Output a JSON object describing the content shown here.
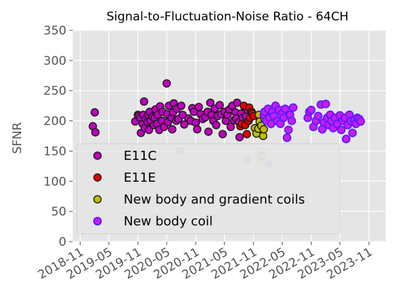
{
  "chart_data": {
    "type": "scatter",
    "title": "Signal-to-Fluctuation-Noise Ratio - 64CH",
    "xlabel": "",
    "ylabel": "SFNR",
    "xlim": [
      "2018-09-15",
      "2024-02-15"
    ],
    "ylim": [
      0,
      350
    ],
    "yticks": [
      0,
      50,
      100,
      150,
      200,
      250,
      300,
      350
    ],
    "xticks": [
      {
        "date": "2018-11-01",
        "label": "2018-11"
      },
      {
        "date": "2019-05-01",
        "label": "2019-05"
      },
      {
        "date": "2019-11-01",
        "label": "2019-11"
      },
      {
        "date": "2020-05-01",
        "label": "2020-05"
      },
      {
        "date": "2020-11-01",
        "label": "2020-11"
      },
      {
        "date": "2021-05-01",
        "label": "2021-05"
      },
      {
        "date": "2021-11-01",
        "label": "2021-11"
      },
      {
        "date": "2022-05-01",
        "label": "2022-05"
      },
      {
        "date": "2022-11-01",
        "label": "2022-11"
      },
      {
        "date": "2023-05-01",
        "label": "2023-05"
      },
      {
        "date": "2023-11-01",
        "label": "2023-11"
      }
    ],
    "grid": true,
    "legend_position": "lower-left",
    "series": [
      {
        "name": "E11C",
        "color": "#bf00bf",
        "points": [
          [
            "2019-01-20",
            191
          ],
          [
            "2019-02-01",
            214
          ],
          [
            "2019-02-05",
            181
          ],
          [
            "2019-10-15",
            199
          ],
          [
            "2019-11-01",
            210
          ],
          [
            "2019-11-05",
            208
          ],
          [
            "2019-11-15",
            205
          ],
          [
            "2019-11-20",
            180
          ],
          [
            "2019-12-01",
            195
          ],
          [
            "2019-12-05",
            210
          ],
          [
            "2019-12-10",
            232
          ],
          [
            "2019-12-15",
            188
          ],
          [
            "2019-12-20",
            203
          ],
          [
            "2020-01-01",
            198
          ],
          [
            "2020-01-05",
            210
          ],
          [
            "2020-01-10",
            185
          ],
          [
            "2020-01-15",
            215
          ],
          [
            "2020-01-20",
            200
          ],
          [
            "2020-02-01",
            207
          ],
          [
            "2020-02-10",
            193
          ],
          [
            "2020-02-15",
            205
          ],
          [
            "2020-02-20",
            219
          ],
          [
            "2020-03-01",
            195
          ],
          [
            "2020-03-05",
            210
          ],
          [
            "2020-03-15",
            185
          ],
          [
            "2020-03-20",
            224
          ],
          [
            "2020-04-01",
            200
          ],
          [
            "2020-04-05",
            215
          ],
          [
            "2020-04-15",
            190
          ],
          [
            "2020-05-01",
            262
          ],
          [
            "2020-05-05",
            211
          ],
          [
            "2020-05-10",
            198
          ],
          [
            "2020-05-15",
            225
          ],
          [
            "2020-06-01",
            205
          ],
          [
            "2020-06-05",
            186
          ],
          [
            "2020-06-10",
            214
          ],
          [
            "2020-06-15",
            229
          ],
          [
            "2020-07-01",
            200
          ],
          [
            "2020-07-05",
            220
          ],
          [
            "2020-07-15",
            203
          ],
          [
            "2020-08-01",
            225
          ],
          [
            "2020-08-10",
            210
          ],
          [
            "2020-08-20",
            194
          ],
          [
            "2020-09-15",
            204
          ],
          [
            "2020-10-01",
            200
          ],
          [
            "2020-10-10",
            221
          ],
          [
            "2020-10-20",
            215
          ],
          [
            "2020-11-01",
            197
          ],
          [
            "2020-11-10",
            186
          ],
          [
            "2020-11-20",
            223
          ],
          [
            "2020-12-01",
            211
          ],
          [
            "2020-12-15",
            203
          ],
          [
            "2021-01-01",
            206
          ],
          [
            "2021-01-15",
            215
          ],
          [
            "2021-01-20",
            182
          ],
          [
            "2021-02-01",
            230
          ],
          [
            "2021-02-10",
            210
          ],
          [
            "2021-02-20",
            200
          ],
          [
            "2021-03-01",
            220
          ],
          [
            "2021-03-10",
            193
          ],
          [
            "2021-03-20",
            208
          ],
          [
            "2021-04-01",
            226
          ],
          [
            "2021-04-10",
            211
          ],
          [
            "2021-04-20",
            178
          ],
          [
            "2021-05-01",
            215
          ],
          [
            "2021-05-10",
            200
          ],
          [
            "2021-05-20",
            210
          ],
          [
            "2021-06-01",
            219
          ],
          [
            "2021-06-10",
            190
          ],
          [
            "2021-06-20",
            225
          ],
          [
            "2021-07-01",
            201
          ],
          [
            "2021-07-10",
            214
          ],
          [
            "2021-07-15",
            204
          ],
          [
            "2021-07-20",
            230
          ],
          [
            "2021-08-01",
            198
          ],
          [
            "2021-08-05",
            173
          ],
          [
            "2021-08-15",
            212
          ],
          [
            "2021-08-25",
            205
          ],
          [
            "2021-09-05",
            223
          ],
          [
            "2021-09-15",
            208
          ],
          [
            "2021-09-25",
            218
          ]
        ]
      },
      {
        "name": "E11E",
        "color": "#e50000",
        "points": [
          [
            "2021-08-10",
            191
          ],
          [
            "2021-08-20",
            195
          ],
          [
            "2021-09-01",
            225
          ],
          [
            "2021-09-10",
            193
          ],
          [
            "2021-09-20",
            178
          ],
          [
            "2021-10-01",
            200
          ],
          [
            "2021-10-05",
            222
          ],
          [
            "2021-10-10",
            205
          ],
          [
            "2021-10-20",
            215
          ],
          [
            "2021-10-25",
            212
          ],
          [
            "2021-11-01",
            208
          ]
        ]
      },
      {
        "name": "New body and gradient coils",
        "color": "#bfbf00",
        "points": [
          [
            "2021-11-10",
            188
          ],
          [
            "2021-11-20",
            179
          ],
          [
            "2021-12-01",
            187
          ],
          [
            "2021-12-05",
            210
          ],
          [
            "2021-12-10",
            199
          ],
          [
            "2021-12-20",
            192
          ],
          [
            "2022-01-01",
            175
          ],
          [
            "2022-01-05",
            186
          ],
          [
            "2022-01-10",
            203
          ]
        ]
      },
      {
        "name": "New body coil",
        "color": "#6600ff",
        "points": [
          [
            "2022-01-05",
            210
          ],
          [
            "2022-01-10",
            215
          ],
          [
            "2022-01-20",
            200
          ],
          [
            "2022-02-01",
            220
          ],
          [
            "2022-02-10",
            205
          ],
          [
            "2022-02-20",
            195
          ],
          [
            "2022-03-01",
            215
          ],
          [
            "2022-03-10",
            208
          ],
          [
            "2022-03-20",
            225
          ],
          [
            "2022-04-01",
            200
          ],
          [
            "2022-04-10",
            218
          ],
          [
            "2022-04-20",
            195
          ],
          [
            "2022-05-01",
            212
          ],
          [
            "2022-05-10",
            205
          ],
          [
            "2022-05-20",
            220
          ],
          [
            "2022-06-01",
            172
          ],
          [
            "2022-06-10",
            185
          ],
          [
            "2022-06-20",
            210
          ],
          [
            "2022-07-01",
            200
          ],
          [
            "2022-07-10",
            222
          ],
          [
            "2022-10-10",
            205
          ],
          [
            "2022-10-20",
            215
          ],
          [
            "2022-11-01",
            218
          ],
          [
            "2022-11-15",
            190
          ],
          [
            "2022-12-01",
            200
          ],
          [
            "2022-12-15",
            208
          ],
          [
            "2023-01-01",
            227
          ],
          [
            "2023-01-10",
            186
          ],
          [
            "2023-01-20",
            197
          ],
          [
            "2023-02-01",
            228
          ],
          [
            "2023-02-10",
            205
          ],
          [
            "2023-02-20",
            193
          ],
          [
            "2023-03-01",
            210
          ],
          [
            "2023-03-10",
            200
          ],
          [
            "2023-03-20",
            188
          ],
          [
            "2023-04-01",
            205
          ],
          [
            "2023-04-15",
            195
          ],
          [
            "2023-05-01",
            209
          ],
          [
            "2023-05-10",
            185
          ],
          [
            "2023-05-20",
            200
          ],
          [
            "2023-06-01",
            205
          ],
          [
            "2023-06-10",
            170
          ],
          [
            "2023-06-20",
            193
          ],
          [
            "2023-07-01",
            210
          ],
          [
            "2023-07-10",
            200
          ],
          [
            "2023-07-20",
            180
          ],
          [
            "2023-08-01",
            202
          ],
          [
            "2023-08-10",
            195
          ],
          [
            "2023-08-20",
            205
          ],
          [
            "2023-09-01",
            203
          ],
          [
            "2023-09-10",
            199
          ]
        ]
      }
    ],
    "faded_points": [
      {
        "series": "E11C",
        "date": "2020-07-25",
        "value": 151
      },
      {
        "series": "E11E",
        "date": "2021-09-25",
        "value": 137
      },
      {
        "series": "New body and gradient coils",
        "date": "2021-12-08",
        "value": 135
      },
      {
        "series": "New body and gradient coils",
        "date": "2021-12-20",
        "value": 150
      },
      {
        "series": "New body and gradient coils",
        "date": "2021-12-25",
        "value": 142
      },
      {
        "series": "New body coil",
        "date": "2022-02-05",
        "value": 129
      }
    ]
  }
}
